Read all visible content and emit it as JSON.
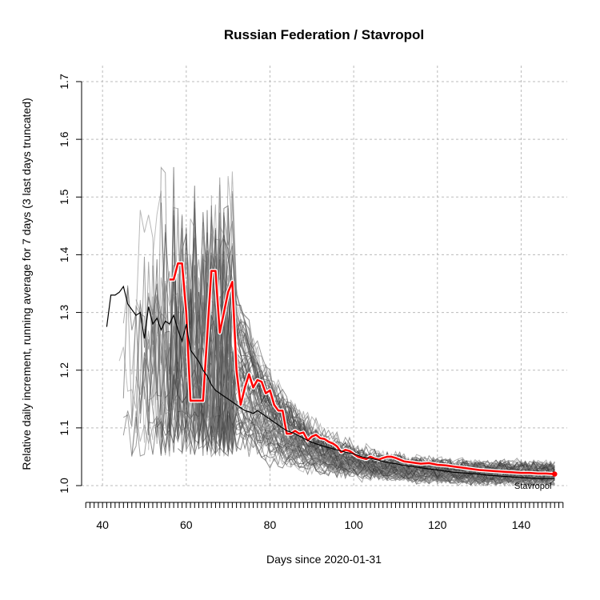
{
  "chart_data": {
    "type": "line",
    "title": "Russian Federation / Stavropol",
    "xlabel": "Days since 2020-01-31",
    "ylabel": "Relative daily increment, running average for 7 days (3 last days truncated)",
    "xlim": [
      35,
      151
    ],
    "ylim": [
      1.0,
      1.7
    ],
    "xticks": [
      40,
      60,
      80,
      100,
      120,
      140
    ],
    "yticks": [
      1.0,
      1.1,
      1.2,
      1.3,
      1.4,
      1.5,
      1.6,
      1.7
    ],
    "grid": true,
    "annotation": "Stavropol",
    "highlight_color": "#ff0000",
    "series": [
      {
        "name": "Stavropol",
        "style": "highlight",
        "x": [
          56,
          57,
          58,
          59,
          60,
          61,
          62,
          63,
          64,
          65,
          66,
          67,
          68,
          69,
          70,
          71,
          72,
          73,
          74,
          75,
          76,
          77,
          78,
          79,
          80,
          81,
          82,
          83,
          84,
          85,
          86,
          87,
          88,
          89,
          90,
          91,
          92,
          93,
          94,
          95,
          96,
          97,
          98,
          99,
          100,
          101,
          102,
          103,
          104,
          105,
          106,
          107,
          108,
          109,
          110,
          112,
          114,
          116,
          118,
          120,
          122,
          124,
          126,
          128,
          130,
          132,
          134,
          136,
          138,
          140,
          142,
          144,
          146,
          148
        ],
        "values": [
          1.357,
          1.357,
          1.385,
          1.385,
          1.3,
          1.147,
          1.147,
          1.147,
          1.147,
          1.26,
          1.372,
          1.372,
          1.265,
          1.3,
          1.335,
          1.353,
          1.2,
          1.14,
          1.17,
          1.193,
          1.17,
          1.183,
          1.18,
          1.16,
          1.165,
          1.14,
          1.13,
          1.13,
          1.09,
          1.09,
          1.095,
          1.09,
          1.092,
          1.078,
          1.085,
          1.088,
          1.082,
          1.081,
          1.076,
          1.073,
          1.068,
          1.058,
          1.062,
          1.06,
          1.055,
          1.05,
          1.048,
          1.046,
          1.05,
          1.047,
          1.045,
          1.048,
          1.05,
          1.05,
          1.048,
          1.042,
          1.04,
          1.038,
          1.039,
          1.036,
          1.035,
          1.033,
          1.031,
          1.029,
          1.027,
          1.026,
          1.025,
          1.024,
          1.023,
          1.022,
          1.022,
          1.021,
          1.021,
          1.02
        ]
      },
      {
        "name": "Russian Federation",
        "style": "country",
        "x": [
          41,
          42,
          43,
          44,
          45,
          46,
          47,
          48,
          49,
          50,
          51,
          52,
          53,
          54,
          55,
          56,
          57,
          58,
          59,
          60,
          61,
          62,
          63,
          64,
          65,
          66,
          67,
          68,
          69,
          70,
          71,
          72,
          73,
          74,
          75,
          76,
          77,
          78,
          79,
          80,
          82,
          84,
          86,
          88,
          90,
          92,
          94,
          96,
          98,
          100,
          102,
          104,
          106,
          108,
          110,
          112,
          114,
          116,
          118,
          120,
          122,
          124,
          126,
          128,
          130,
          132,
          134,
          136,
          138,
          140,
          142,
          144,
          146,
          148
        ],
        "values": [
          1.275,
          1.33,
          1.33,
          1.335,
          1.345,
          1.315,
          1.305,
          1.295,
          1.3,
          1.255,
          1.31,
          1.28,
          1.29,
          1.27,
          1.285,
          1.28,
          1.295,
          1.27,
          1.25,
          1.28,
          1.235,
          1.225,
          1.215,
          1.2,
          1.19,
          1.175,
          1.165,
          1.16,
          1.155,
          1.15,
          1.145,
          1.14,
          1.135,
          1.13,
          1.128,
          1.125,
          1.13,
          1.125,
          1.12,
          1.115,
          1.105,
          1.095,
          1.09,
          1.082,
          1.075,
          1.07,
          1.066,
          1.062,
          1.058,
          1.055,
          1.05,
          1.047,
          1.044,
          1.04,
          1.038,
          1.035,
          1.033,
          1.031,
          1.029,
          1.027,
          1.025,
          1.023,
          1.022,
          1.021,
          1.02,
          1.018,
          1.017,
          1.016,
          1.015,
          1.014,
          1.013,
          1.012,
          1.012,
          1.012
        ]
      }
    ]
  }
}
